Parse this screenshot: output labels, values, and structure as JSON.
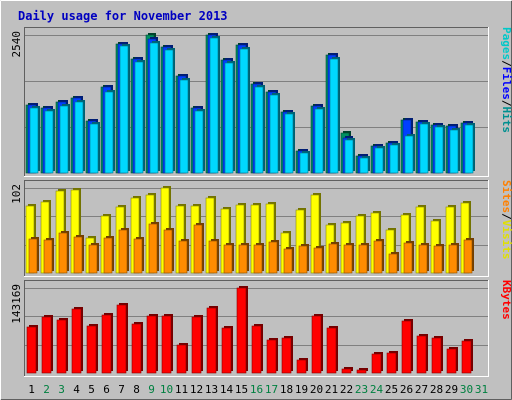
{
  "chart_data": {
    "type": "bar",
    "title": "Daily usage for November 2013",
    "days": [
      "1",
      "2",
      "3",
      "4",
      "5",
      "6",
      "7",
      "8",
      "9",
      "10",
      "11",
      "12",
      "13",
      "14",
      "15",
      "16",
      "17",
      "18",
      "19",
      "20",
      "21",
      "22",
      "23",
      "24",
      "25",
      "26",
      "27",
      "28",
      "29",
      "30",
      "31"
    ],
    "weekend_days": [
      "2",
      "3",
      "9",
      "10",
      "16",
      "17",
      "23",
      "24",
      "30",
      "31"
    ],
    "panels": [
      {
        "id": "hits-panel",
        "max_label": "2540",
        "ymax": 2540,
        "legend": [
          {
            "label": "Pages",
            "color": "#00c8c8"
          },
          {
            "label": "/",
            "color": "#000000"
          },
          {
            "label": "Files",
            "color": "#0000ff"
          },
          {
            "label": "/",
            "color": "#000000"
          },
          {
            "label": "Hits",
            "color": "#009090"
          }
        ],
        "series": [
          {
            "name": "Hits",
            "color": "#009060",
            "values": [
              1260,
              1200,
              1300,
              1380,
              960,
              1580,
              2380,
              2100,
              2540,
              2320,
              1780,
              1200,
              2540,
              2080,
              2350,
              1640,
              1500,
              1130,
              410,
              1240,
              2170,
              730,
              320,
              500,
              560,
              970,
              940,
              890,
              870,
              920,
              0
            ]
          },
          {
            "name": "Files",
            "color": "#0040ff",
            "values": [
              1260,
              1200,
              1300,
              1380,
              960,
              1580,
              2380,
              2100,
              2460,
              2320,
              1780,
              1200,
              2540,
              2080,
              2350,
              1640,
              1500,
              1130,
              410,
              1240,
              2170,
              650,
              320,
              500,
              560,
              970,
              940,
              890,
              870,
              920,
              0
            ]
          },
          {
            "name": "Pages",
            "color": "#00d8ff",
            "values": [
              1200,
              1150,
              1230,
              1300,
              900,
              1500,
              2330,
              2050,
              2400,
              2260,
              1720,
              1140,
              2480,
              2030,
              2290,
              1580,
              1440,
              1080,
              370,
              1180,
              2090,
              600,
              270,
              460,
              510,
              680,
              900,
              850,
              790,
              880,
              0
            ]
          }
        ]
      },
      {
        "id": "visits-panel",
        "max_label": "102",
        "ymax": 102,
        "legend": [
          {
            "label": "Sites",
            "color": "#ff8000"
          },
          {
            "label": "/",
            "color": "#000000"
          },
          {
            "label": "Visits",
            "color": "#e0e000"
          }
        ],
        "series": [
          {
            "name": "Visits",
            "color": "#ffff00",
            "values": [
              80,
              85,
              98,
              100,
              42,
              68,
              79,
              90,
              94,
              102,
              80,
              80,
              90,
              77,
              81,
              81,
              83,
              48,
              75,
              94,
              57,
              60,
              68,
              72,
              52,
              69,
              79,
              62,
              79,
              84,
              0
            ]
          },
          {
            "name": "Sites",
            "color": "#ff8c00",
            "values": [
              41,
              40,
              48,
              43,
              34,
              42,
              51,
              41,
              59,
              52,
              38,
              57,
              38,
              33,
              33,
              34,
              37,
              29,
              32,
              30,
              35,
              33,
              34,
              38,
              23,
              36,
              33,
              32,
              34,
              40,
              0
            ]
          }
        ]
      },
      {
        "id": "kbytes-panel",
        "max_label": "143169",
        "ymax": 143169,
        "legend": [
          {
            "label": "KBytes",
            "color": "#ff0000"
          }
        ],
        "series": [
          {
            "name": "KBytes",
            "color": "#ff0000",
            "values": [
              77000,
              95000,
              89000,
              108000,
              80000,
              98000,
              114000,
              83000,
              96000,
              96000,
              48000,
              95000,
              110000,
              75000,
              143169,
              80000,
              55000,
              59000,
              22000,
              96000,
              75000,
              7000,
              5000,
              32000,
              34000,
              87000,
              62000,
              59000,
              40000,
              54000,
              0
            ]
          }
        ]
      }
    ]
  }
}
